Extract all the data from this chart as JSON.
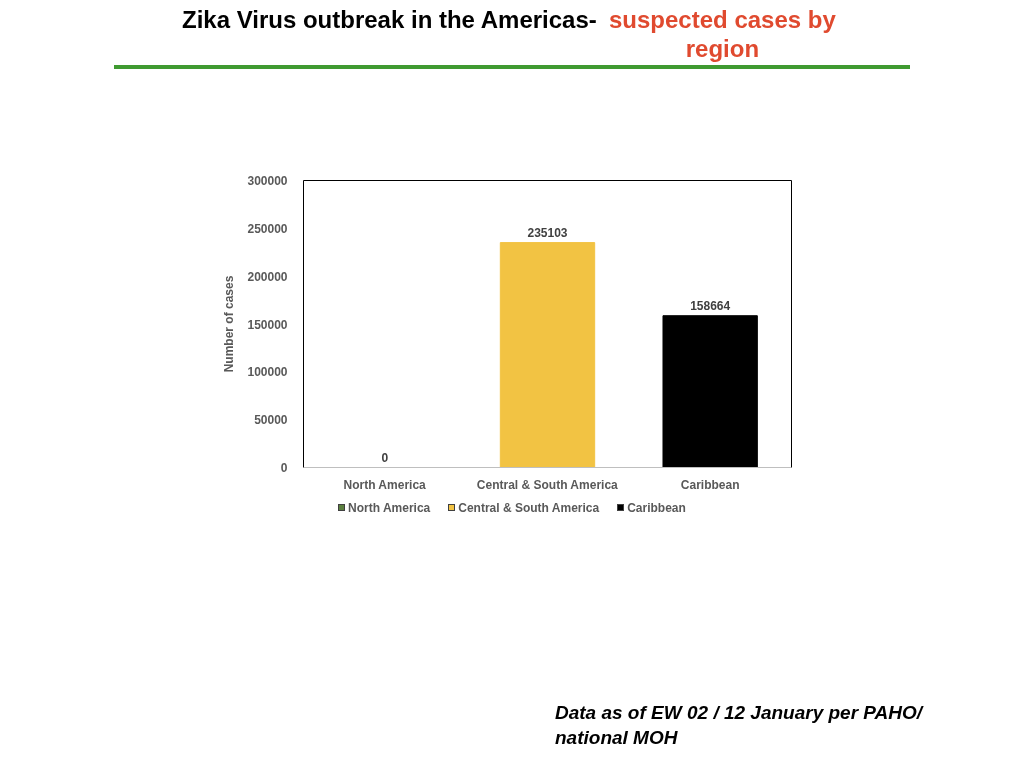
{
  "chart_data": {
    "type": "bar",
    "title": "Zika Virus outbreak in the Americas-",
    "subtitle": "suspected cases by region",
    "categories": [
      "North America",
      "Central & South America",
      "Caribbean"
    ],
    "series": [
      {
        "name": "North America",
        "color": "#5b7f3f",
        "values": [
          0,
          null,
          null
        ]
      },
      {
        "name": "Central & South America",
        "color": "#f2c343",
        "values": [
          null,
          235103,
          null
        ]
      },
      {
        "name": "Caribbean",
        "color": "#000000",
        "values": [
          null,
          null,
          158664
        ]
      }
    ],
    "ylabel": "Number of cases",
    "ylim": [
      0,
      300000
    ],
    "yticks": [
      0,
      50000,
      100000,
      150000,
      200000,
      250000,
      300000
    ],
    "data_labels": true,
    "legend": "bottom",
    "annotations": [
      "Data as of EW 02 / 12 January per PAHO/ national MOH"
    ]
  }
}
